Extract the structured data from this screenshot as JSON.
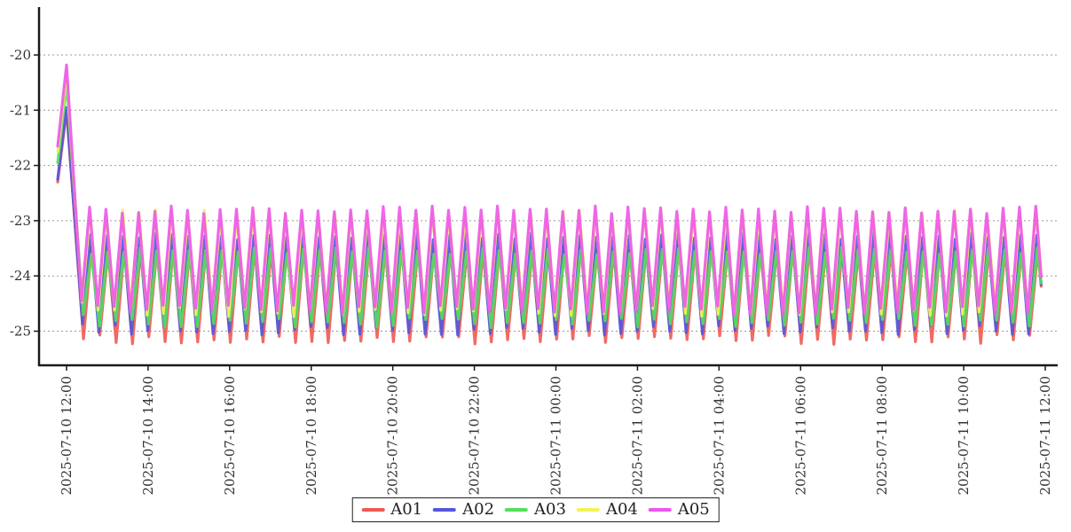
{
  "chart_data": {
    "type": "line",
    "title": "",
    "xlabel": "",
    "ylabel": "",
    "x_ticks": [
      "2025-07-10 12:00",
      "2025-07-10 14:00",
      "2025-07-10 16:00",
      "2025-07-10 18:00",
      "2025-07-10 20:00",
      "2025-07-10 22:00",
      "2025-07-11 00:00",
      "2025-07-11 02:00",
      "2025-07-11 04:00",
      "2025-07-11 06:00",
      "2025-07-11 08:00",
      "2025-07-11 10:00",
      "2025-07-11 12:00"
    ],
    "x_tick_interval_hours": 2,
    "x_span_minutes": 1440,
    "y_ticks": [
      -20,
      -21,
      -22,
      -23,
      -24,
      -25
    ],
    "ylim": [
      -25.6,
      -19.1
    ],
    "grid": {
      "horizontal": true,
      "vertical": false,
      "style": "dotted",
      "color": "#999999"
    },
    "axis_color": "#1a1a1a",
    "legend_position": "bottom-center",
    "oscillation_period_minutes": 24,
    "peak_phase_minutes": 10,
    "data_start_offset_minutes": -13,
    "data_end_offset_minutes": 1434,
    "descent_end_minutes": 22,
    "series": [
      {
        "name": "A01",
        "color": "#ee5a52",
        "start_value": -22.3,
        "spike_peak": -21.0,
        "steady_max": -23.5,
        "steady_min": -25.15,
        "phase_minutes": 3.0
      },
      {
        "name": "A02",
        "color": "#5457dd",
        "start_value": -22.25,
        "spike_peak": -20.95,
        "steady_max": -23.28,
        "steady_min": -24.98,
        "phase_minutes": 1.5
      },
      {
        "name": "A03",
        "color": "#55df5c",
        "start_value": -21.95,
        "spike_peak": -20.52,
        "steady_max": -23.55,
        "steady_min": -24.85,
        "phase_minutes": 2.5
      },
      {
        "name": "A04",
        "color": "#f3f356",
        "start_value": -21.75,
        "spike_peak": -20.32,
        "steady_max": -22.86,
        "steady_min": -24.65,
        "phase_minutes": 0.5
      },
      {
        "name": "A05",
        "color": "#ee55ee",
        "start_value": -21.65,
        "spike_peak": -20.18,
        "steady_max": -22.8,
        "steady_min": -24.62,
        "phase_minutes": 0.0
      }
    ]
  }
}
